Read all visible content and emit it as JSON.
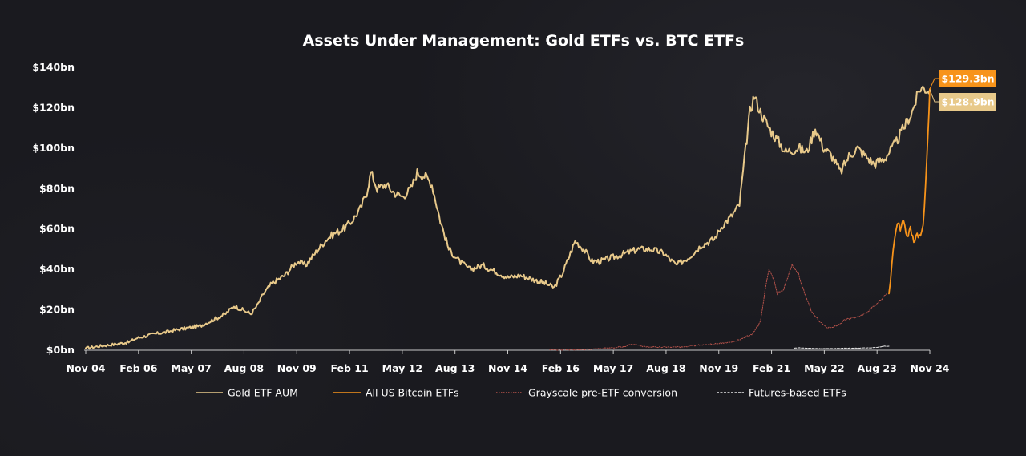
{
  "chart_data": {
    "type": "line",
    "title": "Assets Under Management: Gold ETFs vs. BTC ETFs",
    "y_ticks": [
      "$0bn",
      "$20bn",
      "$40bn",
      "$60bn",
      "$80bn",
      "$100bn",
      "$120bn",
      "$140bn"
    ],
    "ylim": [
      0,
      140
    ],
    "x_ticks": [
      "Nov 04",
      "Feb 06",
      "May 07",
      "Aug 08",
      "Nov 09",
      "Feb 11",
      "May 12",
      "Aug 13",
      "Nov 14",
      "Feb 16",
      "May 17",
      "Aug 18",
      "Nov 19",
      "Feb 21",
      "May 22",
      "Aug 23",
      "Nov 24"
    ],
    "x_unit": "year",
    "xlim": [
      2004.88,
      2024.92
    ],
    "grid": false,
    "legend_position": "bottom",
    "series": [
      {
        "name": "Gold ETF AUM",
        "color": "#e8c98a",
        "style": "solid",
        "end_label": "$128.9bn",
        "points": [
          [
            2004.88,
            1
          ],
          [
            2005.2,
            2
          ],
          [
            2005.6,
            3
          ],
          [
            2005.9,
            4
          ],
          [
            2006.1,
            6
          ],
          [
            2006.5,
            8
          ],
          [
            2006.8,
            9
          ],
          [
            2007.0,
            10
          ],
          [
            2007.3,
            11
          ],
          [
            2007.6,
            12
          ],
          [
            2007.9,
            15
          ],
          [
            2008.2,
            18
          ],
          [
            2008.4,
            22
          ],
          [
            2008.6,
            20
          ],
          [
            2008.8,
            18
          ],
          [
            2008.95,
            22
          ],
          [
            2009.1,
            28
          ],
          [
            2009.3,
            33
          ],
          [
            2009.6,
            37
          ],
          [
            2009.9,
            44
          ],
          [
            2010.1,
            42
          ],
          [
            2010.4,
            50
          ],
          [
            2010.6,
            55
          ],
          [
            2010.8,
            58
          ],
          [
            2011.0,
            60
          ],
          [
            2011.2,
            64
          ],
          [
            2011.4,
            70
          ],
          [
            2011.55,
            78
          ],
          [
            2011.65,
            88
          ],
          [
            2011.8,
            80
          ],
          [
            2012.0,
            82
          ],
          [
            2012.2,
            78
          ],
          [
            2012.4,
            76
          ],
          [
            2012.6,
            80
          ],
          [
            2012.75,
            88
          ],
          [
            2012.95,
            86
          ],
          [
            2013.1,
            82
          ],
          [
            2013.3,
            64
          ],
          [
            2013.5,
            50
          ],
          [
            2013.75,
            44
          ],
          [
            2014.0,
            40
          ],
          [
            2014.3,
            42
          ],
          [
            2014.6,
            39
          ],
          [
            2014.9,
            36
          ],
          [
            2015.2,
            37
          ],
          [
            2015.5,
            35
          ],
          [
            2015.8,
            33
          ],
          [
            2016.0,
            31
          ],
          [
            2016.2,
            38
          ],
          [
            2016.5,
            54
          ],
          [
            2016.7,
            50
          ],
          [
            2016.9,
            44
          ],
          [
            2017.1,
            44
          ],
          [
            2017.4,
            46
          ],
          [
            2017.7,
            48
          ],
          [
            2018.0,
            50
          ],
          [
            2018.3,
            50
          ],
          [
            2018.6,
            48
          ],
          [
            2018.9,
            42
          ],
          [
            2019.2,
            46
          ],
          [
            2019.5,
            52
          ],
          [
            2019.8,
            55
          ],
          [
            2020.0,
            62
          ],
          [
            2020.2,
            66
          ],
          [
            2020.4,
            72
          ],
          [
            2020.55,
            100
          ],
          [
            2020.65,
            118
          ],
          [
            2020.75,
            126
          ],
          [
            2020.9,
            118
          ],
          [
            2021.1,
            110
          ],
          [
            2021.3,
            104
          ],
          [
            2021.5,
            98
          ],
          [
            2021.8,
            100
          ],
          [
            2022.0,
            98
          ],
          [
            2022.2,
            110
          ],
          [
            2022.4,
            100
          ],
          [
            2022.6,
            96
          ],
          [
            2022.8,
            88
          ],
          [
            2023.0,
            96
          ],
          [
            2023.2,
            100
          ],
          [
            2023.4,
            96
          ],
          [
            2023.6,
            92
          ],
          [
            2023.85,
            95
          ],
          [
            2024.1,
            102
          ],
          [
            2024.3,
            110
          ],
          [
            2024.5,
            118
          ],
          [
            2024.7,
            130
          ],
          [
            2024.92,
            128.9
          ]
        ]
      },
      {
        "name": "All US Bitcoin ETFs",
        "color": "#f7931a",
        "style": "solid",
        "end_label": "$129.3bn",
        "points": [
          [
            2023.95,
            28
          ],
          [
            2024.02,
            42
          ],
          [
            2024.08,
            56
          ],
          [
            2024.15,
            64
          ],
          [
            2024.22,
            60
          ],
          [
            2024.3,
            65
          ],
          [
            2024.38,
            56
          ],
          [
            2024.46,
            60
          ],
          [
            2024.54,
            54
          ],
          [
            2024.62,
            58
          ],
          [
            2024.7,
            56
          ],
          [
            2024.76,
            62
          ],
          [
            2024.82,
            80
          ],
          [
            2024.86,
            100
          ],
          [
            2024.9,
            120
          ],
          [
            2024.92,
            129.3
          ]
        ]
      },
      {
        "name": "Grayscale pre-ETF conversion",
        "color": "#b5524a",
        "style": "dotted",
        "points": [
          [
            2015.9,
            0.2
          ],
          [
            2016.5,
            0.3
          ],
          [
            2017.0,
            0.6
          ],
          [
            2017.4,
            1.2
          ],
          [
            2017.7,
            2
          ],
          [
            2017.85,
            3
          ],
          [
            2018.1,
            2
          ],
          [
            2018.5,
            1.5
          ],
          [
            2019.0,
            1.6
          ],
          [
            2019.4,
            2.5
          ],
          [
            2019.8,
            3
          ],
          [
            2020.2,
            4
          ],
          [
            2020.5,
            6
          ],
          [
            2020.7,
            8
          ],
          [
            2020.9,
            14
          ],
          [
            2021.0,
            28
          ],
          [
            2021.1,
            40
          ],
          [
            2021.2,
            36
          ],
          [
            2021.3,
            28
          ],
          [
            2021.45,
            30
          ],
          [
            2021.55,
            36
          ],
          [
            2021.65,
            42
          ],
          [
            2021.8,
            38
          ],
          [
            2021.95,
            28
          ],
          [
            2022.1,
            20
          ],
          [
            2022.3,
            14
          ],
          [
            2022.5,
            11
          ],
          [
            2022.7,
            12
          ],
          [
            2022.9,
            15
          ],
          [
            2023.1,
            16
          ],
          [
            2023.3,
            17
          ],
          [
            2023.5,
            20
          ],
          [
            2023.7,
            24
          ],
          [
            2023.9,
            28
          ]
        ]
      },
      {
        "name": "Futures-based ETFs",
        "color": "#e8e8e8",
        "style": "dashed",
        "points": [
          [
            2021.7,
            1
          ],
          [
            2021.8,
            1.2
          ],
          [
            2022.0,
            1
          ],
          [
            2022.3,
            0.8
          ],
          [
            2022.6,
            0.8
          ],
          [
            2022.9,
            1
          ],
          [
            2023.2,
            1
          ],
          [
            2023.5,
            1.2
          ],
          [
            2023.7,
            1.5
          ],
          [
            2023.85,
            2
          ],
          [
            2023.95,
            2
          ]
        ]
      }
    ]
  }
}
